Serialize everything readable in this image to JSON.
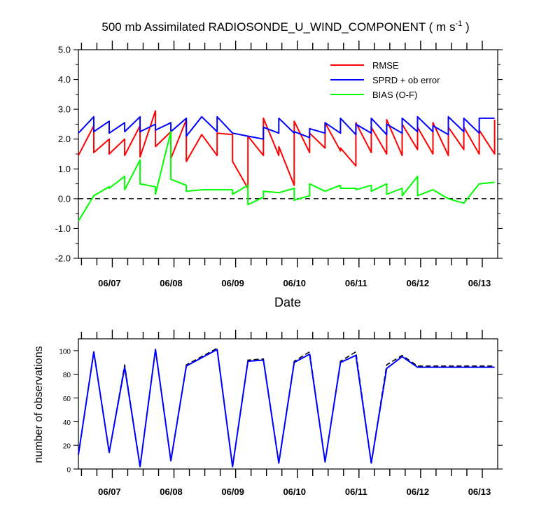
{
  "chart_data": [
    {
      "type": "line",
      "title_main": "500 mb Assimilated RADIOSONDE_U_WIND_COMPONENT ( m s",
      "title_sup": "-1",
      "title_end": " )",
      "xlabel": "Date",
      "ylabel": "",
      "xlim": [
        0,
        6.8
      ],
      "ylim": [
        -2.0,
        5.0
      ],
      "y_ticks": [
        -2.0,
        -1.0,
        0.0,
        1.0,
        2.0,
        3.0,
        4.0,
        5.0
      ],
      "y_tick_labels": [
        "-2.0",
        "-1.0",
        "0.0",
        "1.0",
        "2.0",
        "3.0",
        "4.0",
        "5.0"
      ],
      "x_ticks": [
        0.55,
        1.55,
        2.55,
        3.55,
        4.55,
        5.55,
        6.55
      ],
      "x_tick_labels": [
        "06/07",
        "06/08",
        "06/09",
        "06/10",
        "06/11",
        "06/12",
        "06/13"
      ],
      "zero_line": 0.0,
      "series": [
        {
          "name": "RMSE",
          "color": "#ff0000",
          "x": [
            0,
            0.25,
            0.25,
            0.5,
            0.5,
            0.75,
            0.75,
            1.0,
            1.0,
            1.25,
            1.25,
            1.5,
            1.5,
            1.75,
            1.75,
            2.0,
            2.25,
            2.25,
            2.5,
            2.5,
            2.75,
            2.75,
            3.0,
            3.0,
            3.25,
            3.25,
            3.5,
            3.5,
            3.75,
            3.75,
            4.0,
            4.0,
            4.25,
            4.25,
            4.5,
            4.5,
            4.75,
            4.75,
            5.0,
            5.0,
            5.25,
            5.25,
            5.5,
            5.5,
            5.75,
            5.75,
            6.0,
            6.0,
            6.25,
            6.25,
            6.5,
            6.5,
            6.75,
            6.75
          ],
          "y": [
            1.45,
            2.45,
            1.55,
            2.0,
            1.5,
            2.0,
            1.45,
            2.45,
            1.4,
            2.95,
            1.75,
            2.25,
            1.35,
            2.65,
            1.25,
            2.15,
            1.45,
            2.2,
            2.15,
            1.25,
            0.35,
            2.1,
            1.45,
            2.7,
            1.45,
            1.75,
            0.45,
            2.6,
            1.55,
            2.2,
            1.7,
            2.55,
            1.6,
            1.7,
            1.1,
            2.55,
            1.55,
            2.4,
            1.5,
            2.65,
            1.45,
            2.5,
            1.65,
            2.4,
            1.5,
            2.55,
            1.45,
            2.4,
            1.65,
            2.4,
            1.5,
            2.3,
            1.5,
            2.65
          ]
        },
        {
          "name": "SPRD + ob error",
          "color": "#0000ff",
          "x": [
            0,
            0.25,
            0.25,
            0.5,
            0.5,
            0.75,
            0.75,
            1.0,
            1.0,
            1.25,
            1.25,
            1.5,
            1.5,
            1.75,
            1.75,
            2.0,
            2.25,
            2.25,
            2.5,
            2.5,
            2.75,
            2.75,
            3.0,
            3.0,
            3.25,
            3.25,
            3.5,
            3.5,
            3.75,
            3.75,
            4.0,
            4.0,
            4.25,
            4.25,
            4.5,
            4.5,
            4.75,
            4.75,
            5.0,
            5.0,
            5.25,
            5.25,
            5.5,
            5.5,
            5.75,
            5.75,
            6.0,
            6.0,
            6.25,
            6.25,
            6.5,
            6.5,
            6.75
          ],
          "y": [
            2.2,
            2.75,
            2.25,
            2.6,
            2.2,
            2.55,
            2.25,
            2.75,
            2.25,
            2.5,
            2.3,
            2.55,
            2.25,
            2.7,
            2.1,
            2.75,
            2.25,
            2.75,
            2.2,
            2.2,
            2.1,
            2.1,
            2.0,
            2.4,
            2.2,
            2.7,
            2.2,
            2.25,
            2.05,
            2.35,
            2.2,
            2.55,
            2.2,
            2.7,
            2.15,
            2.5,
            2.2,
            2.7,
            2.15,
            2.5,
            2.2,
            2.7,
            2.25,
            2.75,
            2.25,
            2.45,
            2.15,
            2.75,
            2.25,
            2.7,
            2.2,
            2.7,
            2.7
          ]
        },
        {
          "name": "BIAS (O-F)",
          "color": "#00ff00",
          "x": [
            0,
            0.25,
            0.5,
            0.5,
            0.75,
            0.75,
            1.0,
            1.0,
            1.25,
            1.25,
            1.5,
            1.5,
            1.75,
            1.75,
            2.0,
            2.25,
            2.5,
            2.5,
            2.75,
            2.75,
            3.0,
            3.0,
            3.25,
            3.25,
            3.5,
            3.5,
            3.75,
            3.75,
            4.0,
            4.0,
            4.25,
            4.25,
            4.5,
            4.5,
            4.75,
            4.75,
            5.0,
            5.0,
            5.25,
            5.25,
            5.5,
            5.5,
            5.75,
            5.75,
            6.0,
            6.0,
            6.25,
            6.25,
            6.5,
            6.75
          ],
          "y": [
            -0.75,
            0.1,
            0.4,
            0.35,
            0.75,
            0.3,
            1.3,
            0.5,
            0.4,
            0.15,
            2.25,
            0.65,
            0.45,
            0.25,
            0.3,
            0.3,
            0.3,
            0.15,
            0.45,
            -0.2,
            0.05,
            0.25,
            0.2,
            0.2,
            0.35,
            -0.05,
            0.1,
            0.5,
            0.25,
            0.25,
            0.45,
            0.35,
            0.35,
            0.3,
            0.45,
            0.25,
            0.5,
            0.15,
            0.35,
            0.1,
            0.75,
            0.1,
            0.3,
            0.3,
            0.0,
            0.0,
            -0.15,
            -0.15,
            0.5,
            0.55
          ]
        }
      ],
      "legend": [
        {
          "label": "RMSE",
          "color": "#ff0000"
        },
        {
          "label": "SPRD + ob error",
          "color": "#0000ff"
        },
        {
          "label": "BIAS (O-F)",
          "color": "#00ff00"
        }
      ]
    },
    {
      "type": "line",
      "title": "",
      "xlabel": "",
      "ylabel": "number of observations",
      "xlim": [
        0,
        6.8
      ],
      "ylim": [
        0,
        110
      ],
      "y_ticks": [
        0,
        20,
        40,
        60,
        80,
        100
      ],
      "y_tick_labels": [
        "0",
        "20",
        "40",
        "60",
        "80",
        "100"
      ],
      "x_ticks": [
        0.55,
        1.55,
        2.55,
        3.55,
        4.55,
        5.55,
        6.55
      ],
      "x_tick_labels": [
        "06/07",
        "06/08",
        "06/09",
        "06/10",
        "06/11",
        "06/12",
        "06/13"
      ],
      "series": [
        {
          "name": "observations (solid)",
          "color": "#0000ff",
          "x": [
            0,
            0.25,
            0.5,
            0.75,
            1.0,
            1.25,
            1.5,
            1.75,
            2.25,
            2.5,
            2.75,
            3.0,
            3.25,
            3.5,
            3.75,
            4.0,
            4.25,
            4.5,
            4.75,
            5.0,
            5.25,
            5.5,
            5.75,
            6.0,
            6.25,
            6.5,
            6.75
          ],
          "y": [
            12,
            99,
            14,
            86,
            2,
            101,
            7,
            87,
            101,
            2,
            91,
            92,
            5,
            90,
            97,
            6,
            90,
            96,
            5,
            85,
            95,
            86,
            86,
            86,
            86,
            86,
            86
          ]
        },
        {
          "name": "observations (dashed)",
          "color": "#000000",
          "x": [
            0,
            0.25,
            0.5,
            0.75,
            1.0,
            1.25,
            1.5,
            1.75,
            2.25,
            2.5,
            2.75,
            3.0,
            3.25,
            3.5,
            3.75,
            4.0,
            4.25,
            4.5,
            4.75,
            5.0,
            5.25,
            5.5,
            5.75,
            6.0,
            6.25,
            6.5,
            6.75
          ],
          "y": [
            12,
            99,
            14,
            88,
            2,
            101,
            7,
            88,
            102,
            2,
            92,
            93,
            5,
            91,
            99,
            6,
            91,
            99,
            5,
            88,
            96,
            87,
            87,
            87,
            87,
            87,
            87
          ]
        }
      ]
    }
  ]
}
